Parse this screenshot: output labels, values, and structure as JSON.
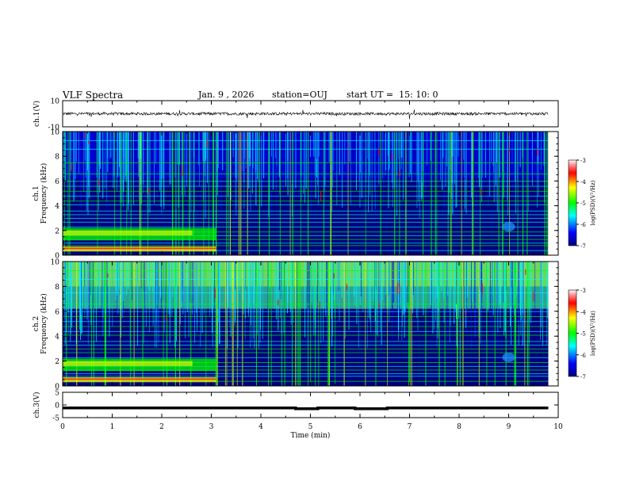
{
  "header": {
    "title": "VLF Spectra",
    "date": "Jan. 9 , 2026",
    "station": "station=OUJ",
    "start_time": "start UT =  15: 10: 0"
  },
  "colors": {
    "background": "#000080",
    "colorscale": [
      "#00007f",
      "#0000ff",
      "#00ffff",
      "#00ff00",
      "#ffff00",
      "#ff0000",
      "#ff9a9a",
      "#ffffff"
    ]
  },
  "chart_data": [
    {
      "type": "line",
      "ylabel": "ch.1(V)",
      "ylim": [
        -10,
        10
      ],
      "y_ticks": [
        "10",
        "-10"
      ],
      "x": [
        0,
        10
      ],
      "values": "waveform near 0 V with small noise"
    },
    {
      "type": "heatmap",
      "ylabel": "ch.1\nFrequency (kHz)",
      "ylim": [
        0,
        10
      ],
      "y_ticks": [
        "0",
        "2",
        "4",
        "6",
        "8",
        "10"
      ],
      "colorbar": {
        "label": "log(PSD)(V²/Hz)",
        "range": [
          -7,
          -3
        ],
        "ticks": [
          "-3",
          "-4",
          "-5",
          "-6",
          "-7"
        ]
      }
    },
    {
      "type": "heatmap",
      "ylabel": "ch.2\nFrequency (kHz)",
      "ylim": [
        0,
        10
      ],
      "y_ticks": [
        "0",
        "2",
        "4",
        "6",
        "8",
        "10"
      ],
      "colorbar": {
        "label": "log(PSD)(V²/Hz)",
        "range": [
          -7,
          -3
        ],
        "ticks": [
          "-3",
          "-4",
          "-5",
          "-6",
          "-7"
        ]
      }
    },
    {
      "type": "line",
      "ylabel": "ch.3(V)",
      "ylim": [
        -5,
        5
      ],
      "y_ticks": [
        "5",
        "0",
        "-5"
      ],
      "series": [
        {
          "x": [
            0,
            4.7,
            4.7,
            5.15,
            5.15,
            5.9,
            5.9,
            6.55,
            6.55,
            9.8
          ],
          "values": [
            -1.2,
            -1.2,
            -1.5,
            -1.5,
            -1.2,
            -1.2,
            -1.5,
            -1.5,
            -1.2,
            -1.2
          ]
        }
      ]
    }
  ],
  "xaxis": {
    "label": "Time (min)",
    "range": [
      0,
      10
    ],
    "ticks": [
      "0",
      "1",
      "2",
      "3",
      "4",
      "5",
      "6",
      "7",
      "8",
      "9",
      "10"
    ]
  }
}
